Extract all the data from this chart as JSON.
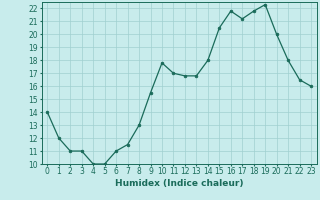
{
  "x": [
    0,
    1,
    2,
    3,
    4,
    5,
    6,
    7,
    8,
    9,
    10,
    11,
    12,
    13,
    14,
    15,
    16,
    17,
    18,
    19,
    20,
    21,
    22,
    23
  ],
  "y": [
    14,
    12,
    11,
    11,
    10,
    10,
    11,
    11.5,
    13,
    15.5,
    17.8,
    17,
    16.8,
    16.8,
    18,
    20.5,
    21.8,
    21.2,
    21.8,
    22.3,
    20,
    18,
    16.5,
    16
  ],
  "line_color": "#1a6b5a",
  "marker_color": "#1a6b5a",
  "bg_color": "#c8ecec",
  "grid_color": "#a0d0d0",
  "xlabel": "Humidex (Indice chaleur)",
  "xlim": [
    -0.5,
    23.5
  ],
  "ylim": [
    10,
    22.5
  ],
  "yticks": [
    10,
    11,
    12,
    13,
    14,
    15,
    16,
    17,
    18,
    19,
    20,
    21,
    22
  ],
  "xticks": [
    0,
    1,
    2,
    3,
    4,
    5,
    6,
    7,
    8,
    9,
    10,
    11,
    12,
    13,
    14,
    15,
    16,
    17,
    18,
    19,
    20,
    21,
    22,
    23
  ],
  "tick_fontsize": 5.5,
  "label_fontsize": 6.5
}
